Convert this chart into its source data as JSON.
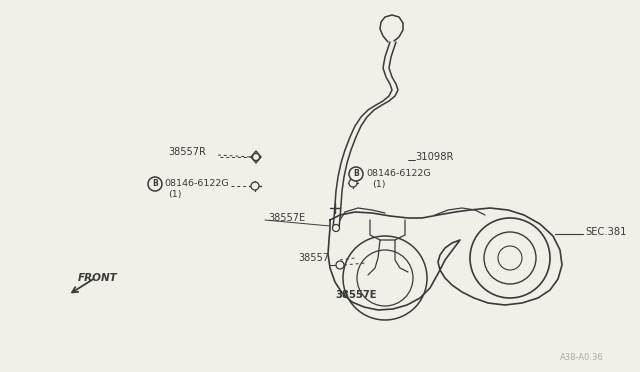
{
  "bg_color": "#f0efe8",
  "line_color": "#3a3a3a",
  "text_color": "#3a3a3a",
  "page_code": "A38-A0.36",
  "figsize": [
    6.4,
    3.72
  ],
  "dpi": 100,
  "xlim": [
    0,
    640
  ],
  "ylim": [
    0,
    372
  ]
}
